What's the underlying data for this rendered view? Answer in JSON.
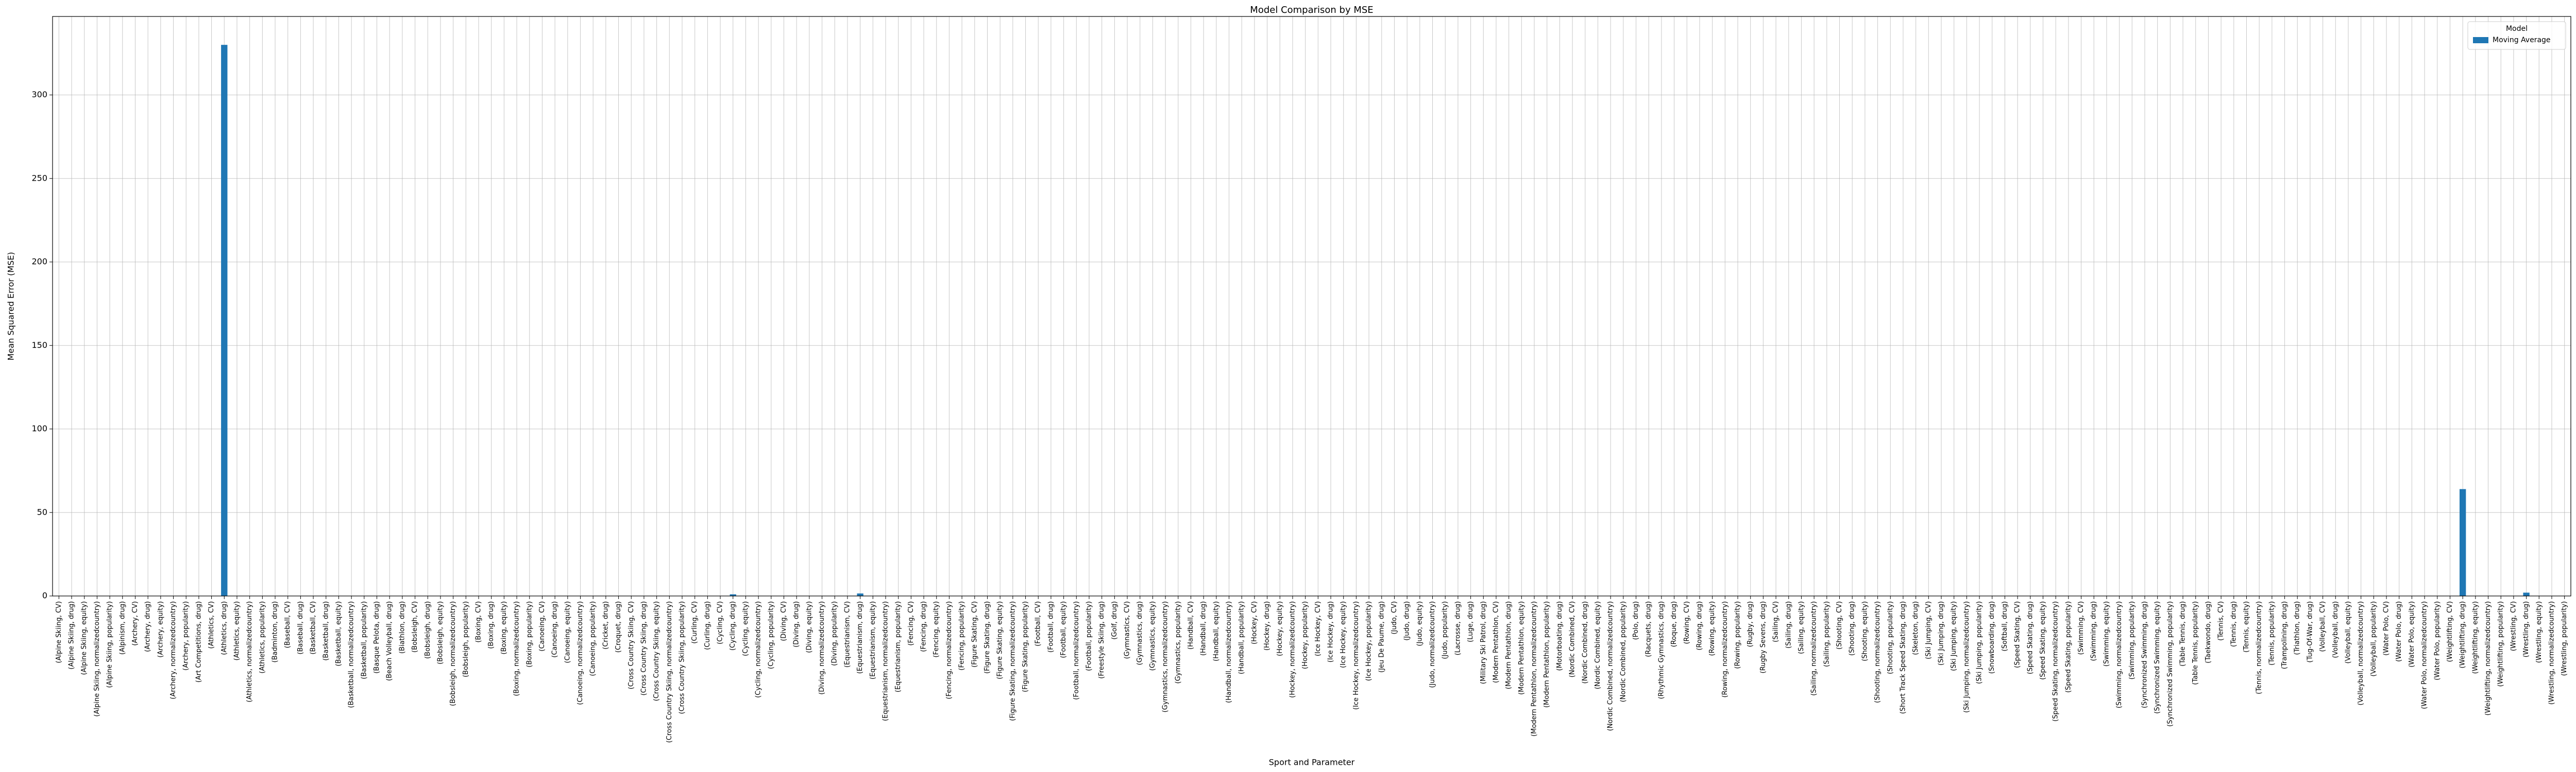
{
  "chart_data": {
    "type": "bar",
    "title": "Model Comparison by MSE",
    "x_label": "Sport and Parameter",
    "y_label": "Mean Squared Error (MSE)",
    "legend_title": "Model",
    "legend": "upper right",
    "grid": true,
    "categories": [
      "(Alpine Skiing, CV)",
      "(Alpine Skiing, drug)",
      "(Alpine Skiing, equity)",
      "(Alpine Skiing, normalizedcountry)",
      "(Alpine Skiing, popularity)",
      "(Alpinism, drug)",
      "(Archery, CV)",
      "(Archery, drug)",
      "(Archery, equity)",
      "(Archery, normalizedcountry)",
      "(Archery, popularity)",
      "(Art Competitions, drug)",
      "(Athletics, CV)",
      "(Athletics, drug)",
      "(Athletics, equity)",
      "(Athletics, normalizedcountry)",
      "(Athletics, popularity)",
      "(Badminton, drug)",
      "(Baseball, CV)",
      "(Baseball, drug)",
      "(Basketball, CV)",
      "(Basketball, drug)",
      "(Basketball, equity)",
      "(Basketball, normalizedcountry)",
      "(Basketball, popularity)",
      "(Basque Pelota, drug)",
      "(Beach Volleyball, drug)",
      "(Biathlon, drug)",
      "(Bobsleigh, CV)",
      "(Bobsleigh, drug)",
      "(Bobsleigh, equity)",
      "(Bobsleigh, normalizedcountry)",
      "(Bobsleigh, popularity)",
      "(Boxing, CV)",
      "(Boxing, drug)",
      "(Boxing, equity)",
      "(Boxing, normalizedcountry)",
      "(Boxing, popularity)",
      "(Canoeing, CV)",
      "(Canoeing, drug)",
      "(Canoeing, equity)",
      "(Canoeing, normalizedcountry)",
      "(Canoeing, popularity)",
      "(Cricket, drug)",
      "(Croquet, drug)",
      "(Cross Country Skiing, CV)",
      "(Cross Country Skiing, drug)",
      "(Cross Country Skiing, equity)",
      "(Cross Country Skiing, normalizedcountry)",
      "(Cross Country Skiing, popularity)",
      "(Curling, CV)",
      "(Curling, drug)",
      "(Cycling, CV)",
      "(Cycling, drug)",
      "(Cycling, equity)",
      "(Cycling, normalizedcountry)",
      "(Cycling, popularity)",
      "(Diving, CV)",
      "(Diving, drug)",
      "(Diving, equity)",
      "(Diving, normalizedcountry)",
      "(Diving, popularity)",
      "(Equestrianism, CV)",
      "(Equestrianism, drug)",
      "(Equestrianism, equity)",
      "(Equestrianism, normalizedcountry)",
      "(Equestrianism, popularity)",
      "(Fencing, CV)",
      "(Fencing, drug)",
      "(Fencing, equity)",
      "(Fencing, normalizedcountry)",
      "(Fencing, popularity)",
      "(Figure Skating, CV)",
      "(Figure Skating, drug)",
      "(Figure Skating, equity)",
      "(Figure Skating, normalizedcountry)",
      "(Figure Skating, popularity)",
      "(Football, CV)",
      "(Football, drug)",
      "(Football, equity)",
      "(Football, normalizedcountry)",
      "(Football, popularity)",
      "(Freestyle Skiing, drug)",
      "(Golf, drug)",
      "(Gymnastics, CV)",
      "(Gymnastics, drug)",
      "(Gymnastics, equity)",
      "(Gymnastics, normalizedcountry)",
      "(Gymnastics, popularity)",
      "(Handball, CV)",
      "(Handball, drug)",
      "(Handball, equity)",
      "(Handball, normalizedcountry)",
      "(Handball, popularity)",
      "(Hockey, CV)",
      "(Hockey, drug)",
      "(Hockey, equity)",
      "(Hockey, normalizedcountry)",
      "(Hockey, popularity)",
      "(Ice Hockey, CV)",
      "(Ice Hockey, drug)",
      "(Ice Hockey, equity)",
      "(Ice Hockey, normalizedcountry)",
      "(Ice Hockey, popularity)",
      "(Jeu De Paume, drug)",
      "(Judo, CV)",
      "(Judo, drug)",
      "(Judo, equity)",
      "(Judo, normalizedcountry)",
      "(Judo, popularity)",
      "(Lacrosse, drug)",
      "(Luge, drug)",
      "(Military Ski Patrol, drug)",
      "(Modern Pentathlon, CV)",
      "(Modern Pentathlon, drug)",
      "(Modern Pentathlon, equity)",
      "(Modern Pentathlon, normalizedcountry)",
      "(Modern Pentathlon, popularity)",
      "(Motorboating, drug)",
      "(Nordic Combined, CV)",
      "(Nordic Combined, drug)",
      "(Nordic Combined, equity)",
      "(Nordic Combined, normalizedcountry)",
      "(Nordic Combined, popularity)",
      "(Polo, drug)",
      "(Racquets, drug)",
      "(Rhythmic Gymnastics, drug)",
      "(Roque, drug)",
      "(Rowing, CV)",
      "(Rowing, drug)",
      "(Rowing, equity)",
      "(Rowing, normalizedcountry)",
      "(Rowing, popularity)",
      "(Rugby, drug)",
      "(Rugby Sevens, drug)",
      "(Sailing, CV)",
      "(Sailing, drug)",
      "(Sailing, equity)",
      "(Sailing, normalizedcountry)",
      "(Sailing, popularity)",
      "(Shooting, CV)",
      "(Shooting, drug)",
      "(Shooting, equity)",
      "(Shooting, normalizedcountry)",
      "(Shooting, popularity)",
      "(Short Track Speed Skating, drug)",
      "(Skeleton, drug)",
      "(Ski Jumping, CV)",
      "(Ski Jumping, drug)",
      "(Ski Jumping, equity)",
      "(Ski Jumping, normalizedcountry)",
      "(Ski Jumping, popularity)",
      "(Snowboarding, drug)",
      "(Softball, drug)",
      "(Speed Skating, CV)",
      "(Speed Skating, drug)",
      "(Speed Skating, equity)",
      "(Speed Skating, normalizedcountry)",
      "(Speed Skating, popularity)",
      "(Swimming, CV)",
      "(Swimming, drug)",
      "(Swimming, equity)",
      "(Swimming, normalizedcountry)",
      "(Swimming, popularity)",
      "(Synchronized Swimming, drug)",
      "(Synchronized Swimming, equity)",
      "(Synchronized Swimming, popularity)",
      "(Table Tennis, drug)",
      "(Table Tennis, popularity)",
      "(Taekwondo, drug)",
      "(Tennis, CV)",
      "(Tennis, drug)",
      "(Tennis, equity)",
      "(Tennis, normalizedcountry)",
      "(Tennis, popularity)",
      "(Trampolining, drug)",
      "(Triathlon, drug)",
      "(Tug-Of-War, drug)",
      "(Volleyball, CV)",
      "(Volleyball, drug)",
      "(Volleyball, equity)",
      "(Volleyball, normalizedcountry)",
      "(Volleyball, popularity)",
      "(Water Polo, CV)",
      "(Water Polo, drug)",
      "(Water Polo, equity)",
      "(Water Polo, normalizedcountry)",
      "(Water Polo, popularity)",
      "(Weightlifting, CV)",
      "(Weightlifting, drug)",
      "(Weightlifting, equity)",
      "(Weightlifting, normalizedcountry)",
      "(Weightlifting, popularity)",
      "(Wrestling, CV)",
      "(Wrestling, drug)",
      "(Wrestling, equity)",
      "(Wrestling, normalizedcountry)",
      "(Wrestling, popularity)"
    ],
    "series": [
      {
        "name": "Moving Average",
        "color": "#1f77b4",
        "values": [
          0,
          0,
          0,
          0,
          0,
          0,
          0,
          0,
          0,
          0,
          0,
          0,
          0,
          330,
          0,
          0,
          0,
          0,
          0,
          0,
          0,
          0,
          0,
          0,
          0,
          0,
          0,
          0,
          0,
          0,
          0,
          0,
          0,
          0,
          0,
          0,
          0,
          0,
          0,
          0,
          0,
          0,
          0,
          0,
          0,
          0,
          0,
          0,
          0,
          0,
          0,
          0,
          0,
          1,
          0,
          0,
          0,
          0,
          0,
          0,
          0,
          0,
          0,
          1.5,
          0,
          0,
          0,
          0,
          0,
          0,
          0,
          0,
          0,
          0,
          0,
          0,
          0,
          0,
          0,
          0,
          0,
          0,
          0,
          0,
          0,
          0,
          0,
          0,
          0,
          0,
          0,
          0,
          0,
          0,
          0,
          0,
          0,
          0,
          0,
          0,
          0,
          0,
          0,
          0,
          0,
          0,
          0,
          0,
          0,
          0,
          0,
          0,
          0,
          0,
          0,
          0,
          0,
          0,
          0,
          0,
          0,
          0,
          0,
          0,
          0,
          0,
          0,
          0,
          0,
          0,
          0,
          0,
          0,
          0,
          0,
          0,
          0,
          0,
          0,
          0,
          0,
          0,
          0,
          0,
          0,
          0,
          0,
          0,
          0,
          0,
          0,
          0,
          0,
          0,
          0,
          0,
          0,
          0,
          0,
          0,
          0,
          0,
          0,
          0,
          0,
          0,
          0,
          0,
          0,
          0,
          0,
          0,
          0,
          0,
          0,
          0,
          0,
          0,
          0,
          0,
          0,
          0,
          0,
          0,
          0,
          0,
          0,
          0,
          0,
          64,
          0,
          0,
          0,
          0,
          2,
          0,
          0,
          0
        ]
      }
    ],
    "ylim": [
      0,
      347
    ],
    "yticks": [
      0,
      50,
      100,
      150,
      200,
      250,
      300
    ]
  }
}
